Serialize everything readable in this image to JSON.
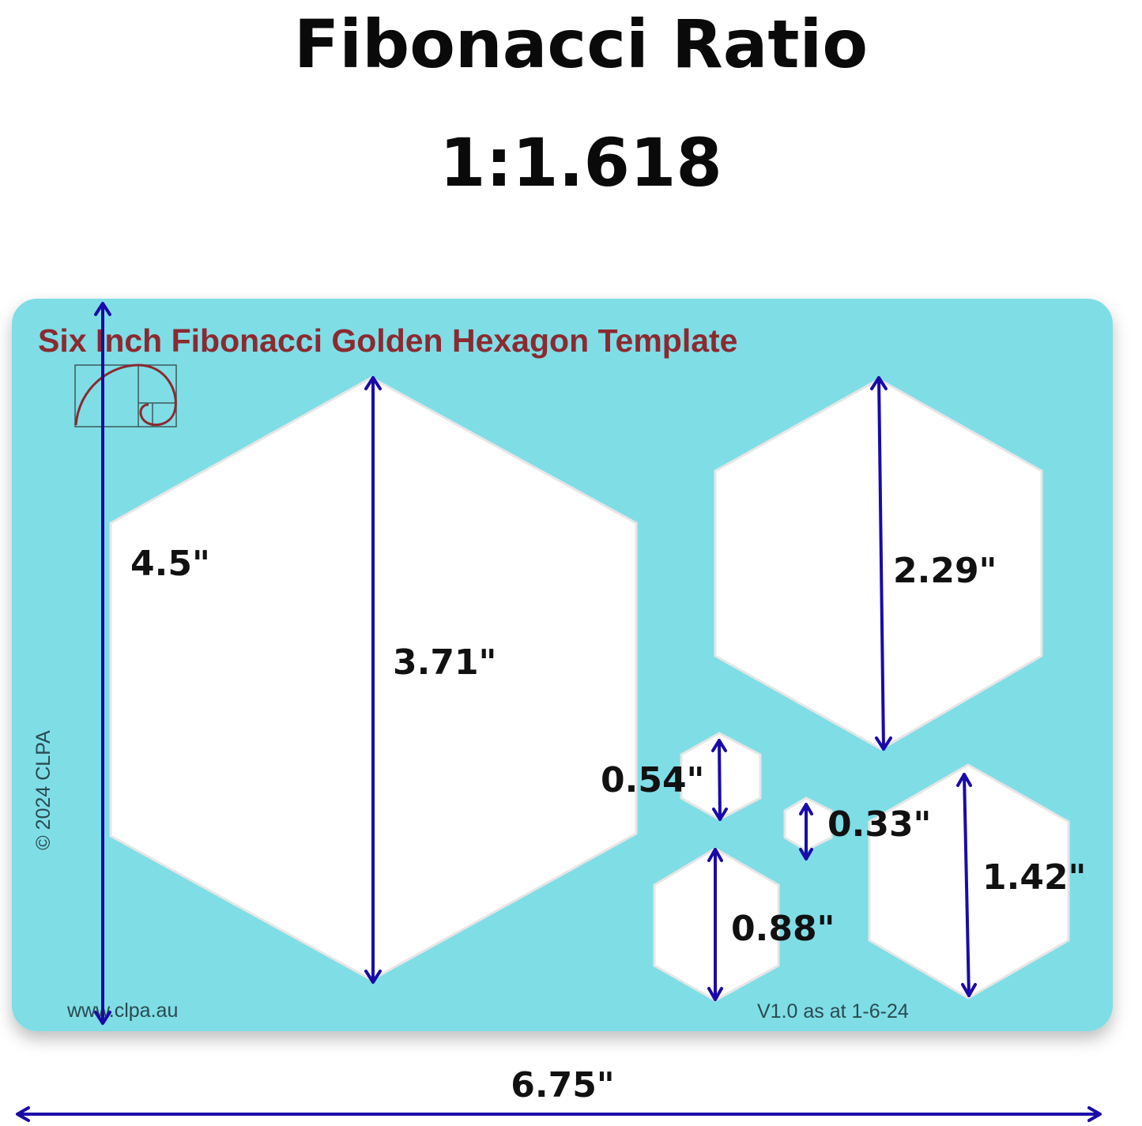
{
  "heading": {
    "line1": "Fibonacci Ratio",
    "line2": "1:1.618"
  },
  "template": {
    "title": "Six Inch Fibonacci Golden Hexagon Template",
    "copyright": "© 2024 CLPA",
    "website": "www.clpa.au",
    "version": "V1.0 as at 1-6-24",
    "color": "#7fdde6",
    "logo": "golden-spiral"
  },
  "dimensions": {
    "height": "4.5\"",
    "width": "6.75\"",
    "hex_large": "3.71\"",
    "hex_medium": "2.29\"",
    "hex_1_42": "1.42\"",
    "hex_0_88": "0.88\"",
    "hex_0_54": "0.54\"",
    "hex_0_33": "0.33\""
  },
  "arrow_color": "#1a0aa8"
}
